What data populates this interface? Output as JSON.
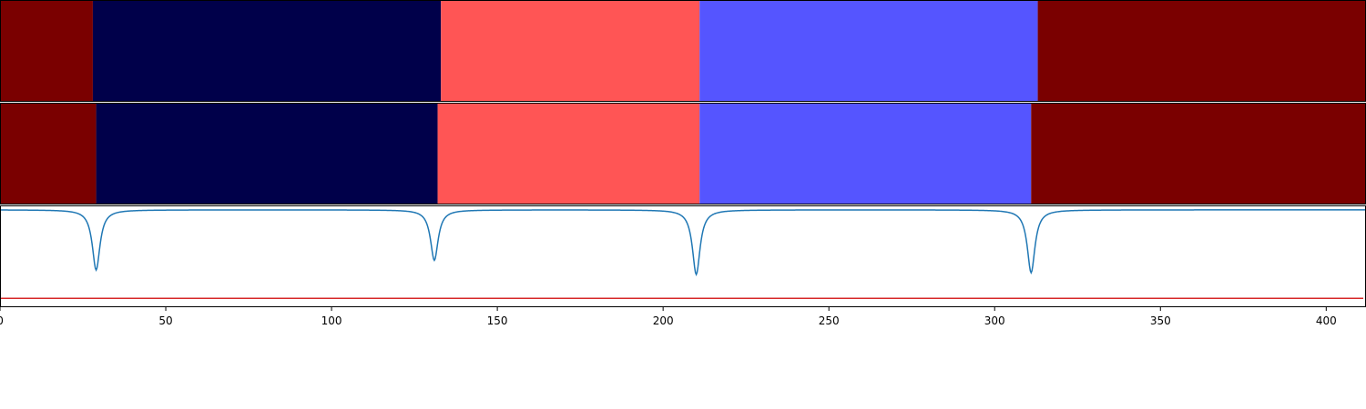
{
  "chart_data": {
    "type": "heatmap",
    "x_range": [
      0,
      412
    ],
    "x_ticks": [
      0,
      50,
      100,
      150,
      200,
      250,
      300,
      350,
      400
    ],
    "x_tick_labels": [
      "0",
      "50",
      "100",
      "150",
      "200",
      "250",
      "300",
      "350",
      "400"
    ],
    "grid": false,
    "legend": "none",
    "segment_rows": [
      {
        "segments": [
          {
            "start": 0,
            "end": 28,
            "color": "#7a0000"
          },
          {
            "start": 28,
            "end": 133,
            "color": "#00004a"
          },
          {
            "start": 133,
            "end": 211,
            "color": "#ff5555"
          },
          {
            "start": 211,
            "end": 313,
            "color": "#5555ff"
          },
          {
            "start": 313,
            "end": 412,
            "color": "#7a0000"
          }
        ]
      },
      {
        "segments": [
          {
            "start": 0,
            "end": 29,
            "color": "#7a0000"
          },
          {
            "start": 29,
            "end": 132,
            "color": "#00004a"
          },
          {
            "start": 132,
            "end": 211,
            "color": "#ff5555"
          },
          {
            "start": 211,
            "end": 311,
            "color": "#5555ff"
          },
          {
            "start": 311,
            "end": 412,
            "color": "#7a0000"
          }
        ]
      }
    ],
    "line_panel": {
      "y_range": [
        -1.1,
        0.05
      ],
      "baseline": 0,
      "dips": [
        {
          "x": 29,
          "depth": 0.68
        },
        {
          "x": 131,
          "depth": 0.57
        },
        {
          "x": 210,
          "depth": 0.73
        },
        {
          "x": 311,
          "depth": 0.71
        }
      ],
      "line_color": "#1f77b4",
      "threshold": -1.0,
      "threshold_color": "#d62728"
    }
  }
}
